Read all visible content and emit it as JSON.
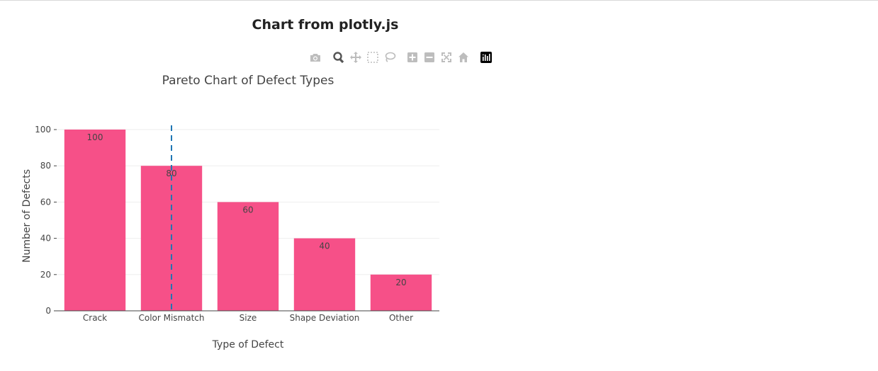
{
  "page": {
    "title": "Chart from plotly.js"
  },
  "modebar": {
    "buttons": [
      {
        "name": "camera-icon",
        "title": "Download plot as a png"
      },
      {
        "name": "zoom-icon",
        "title": "Zoom"
      },
      {
        "name": "pan-icon",
        "title": "Pan"
      },
      {
        "name": "box-select-icon",
        "title": "Box Select"
      },
      {
        "name": "lasso-select-icon",
        "title": "Lasso Select"
      },
      {
        "name": "zoom-in-icon",
        "title": "Zoom in"
      },
      {
        "name": "zoom-out-icon",
        "title": "Zoom out"
      },
      {
        "name": "autoscale-icon",
        "title": "Autoscale"
      },
      {
        "name": "reset-axes-icon",
        "title": "Reset axes"
      },
      {
        "name": "plotly-logo-icon",
        "title": "Produced with Plotly"
      }
    ]
  },
  "chart_data": {
    "type": "bar",
    "title": "Pareto Chart of Defect Types",
    "xlabel": "Type of Defect",
    "ylabel": "Number of Defects",
    "categories": [
      "Crack",
      "Color Mismatch",
      "Size",
      "Shape Deviation",
      "Other"
    ],
    "values": [
      100,
      80,
      60,
      40,
      20
    ],
    "data_labels": [
      "100",
      "80",
      "60",
      "40",
      "20"
    ],
    "ylim": [
      0,
      100
    ],
    "yticks": [
      0,
      20,
      40,
      60,
      80,
      100
    ],
    "grid": true,
    "bar_color": "#f65088",
    "reference_line": {
      "style": "dashed",
      "color": "#1f77b4",
      "x_category": "Color Mismatch"
    }
  }
}
